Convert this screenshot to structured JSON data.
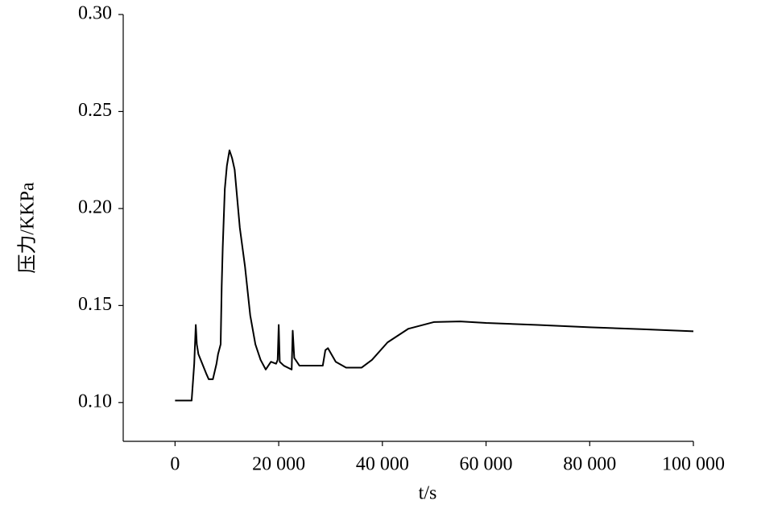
{
  "chart_data": {
    "type": "line",
    "x_label": "t/s",
    "y_label": "压力/KKPa",
    "xlim": [
      -10000,
      100000
    ],
    "xticks": [
      0,
      {
        "value": 20000,
        "label": "20 000"
      },
      {
        "value": 40000,
        "label": "40 000"
      },
      {
        "value": 60000,
        "label": "60 000"
      },
      {
        "value": 80000,
        "label": "80 000"
      },
      {
        "value": 100000,
        "label": "100 000"
      }
    ],
    "ylim": [
      0.08,
      0.3
    ],
    "yticks": [
      {
        "value": 0.1,
        "label": "0.10"
      },
      0.15,
      {
        "value": 0.2,
        "label": "0.20"
      },
      0.25,
      {
        "value": 0.3,
        "label": "0.30"
      }
    ],
    "color": "#000000",
    "x": [
      0,
      1000,
      3200,
      3700,
      4000,
      4200,
      4500,
      6000,
      6500,
      7300,
      8000,
      8300,
      8800,
      9000,
      9200,
      9600,
      10000,
      10500,
      11000,
      11500,
      12500,
      13500,
      14500,
      15500,
      16500,
      17500,
      18500,
      19500,
      19800,
      20000,
      20200,
      21000,
      22500,
      22700,
      23000,
      24000,
      28500,
      29000,
      29500,
      31000,
      33000,
      36000,
      38000,
      41000,
      45000,
      50000,
      55000,
      60000,
      70000,
      80000,
      90000,
      100000
    ],
    "values": [
      0.101,
      0.101,
      0.101,
      0.12,
      0.14,
      0.13,
      0.125,
      0.115,
      0.112,
      0.112,
      0.12,
      0.125,
      0.13,
      0.16,
      0.18,
      0.21,
      0.222,
      0.23,
      0.226,
      0.22,
      0.19,
      0.17,
      0.145,
      0.13,
      0.122,
      0.117,
      0.121,
      0.12,
      0.122,
      0.14,
      0.121,
      0.119,
      0.117,
      0.137,
      0.123,
      0.119,
      0.119,
      0.127,
      0.128,
      0.121,
      0.118,
      0.118,
      0.122,
      0.131,
      0.138,
      0.1415,
      0.1418,
      0.141,
      0.14,
      0.1388,
      0.1378,
      0.1367
    ]
  }
}
